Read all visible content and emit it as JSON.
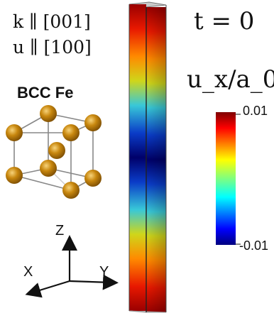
{
  "labels": {
    "wave_vector": "k ∥ [001]",
    "polarization": "u ∥ [100]",
    "material": "BCC Fe",
    "time": "t = 0",
    "quantity": "u_x/a_0"
  },
  "colorbar": {
    "max_label": "0.01",
    "min_label": "-0.01",
    "colormap": "jet"
  },
  "axes": {
    "z": "Z",
    "x": "X",
    "y": "Y"
  },
  "colors": {
    "atom": "#c8870e",
    "atom_edge": "#8a5a05",
    "bond": "#888888"
  }
}
